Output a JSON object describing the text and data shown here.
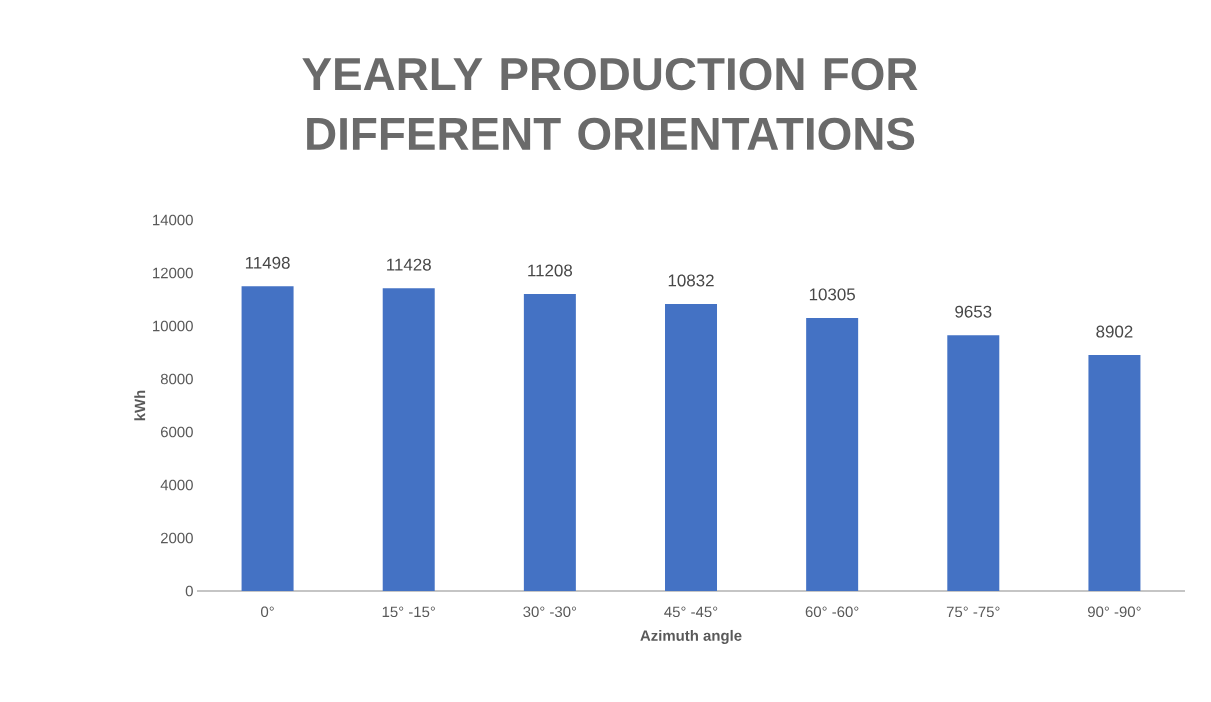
{
  "chart_data": {
    "type": "bar",
    "title": "YEARLY PRODUCTION FOR DIFFERENT ORIENTATIONS",
    "xlabel": "Azimuth angle",
    "ylabel": "kWh",
    "categories": [
      "0°",
      "15° -15°",
      "30° -30°",
      "45° -45°",
      "60° -60°",
      "75° -75°",
      "90° -90°"
    ],
    "values": [
      11498,
      11428,
      11208,
      10832,
      10305,
      9653,
      8902
    ],
    "color": "#4472c4",
    "ylim": [
      0,
      14000
    ],
    "yticks": [
      0,
      2000,
      4000,
      6000,
      8000,
      10000,
      12000,
      14000
    ],
    "data_labels": true
  }
}
